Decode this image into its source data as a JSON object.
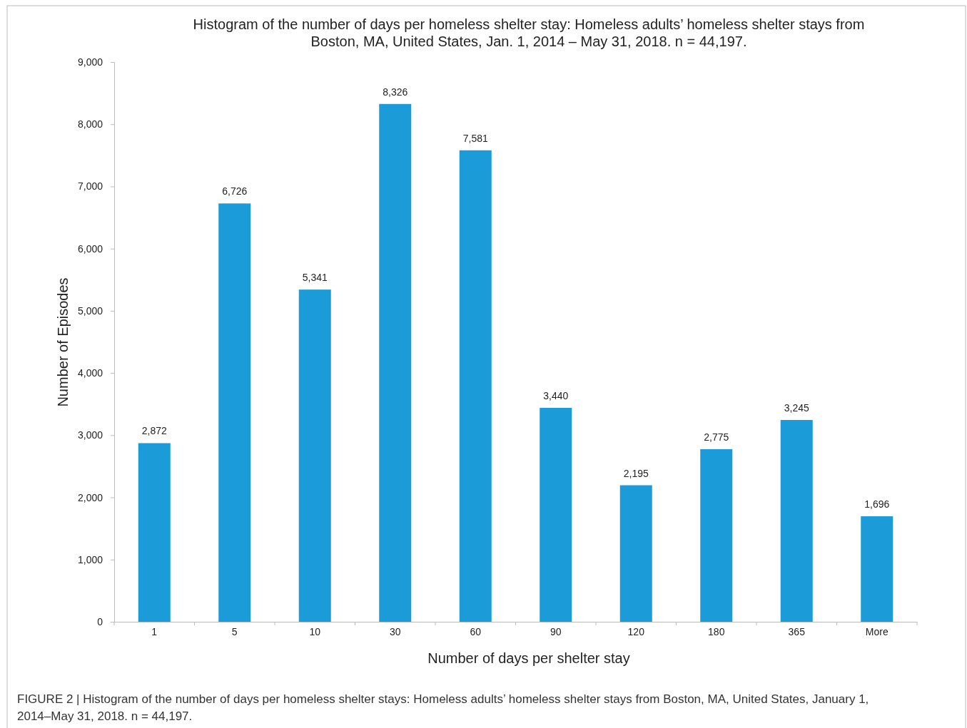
{
  "chart_data": {
    "type": "bar",
    "title": "Histogram of the number of days per homeless shelter stay: Homeless adults’ homeless shelter stays from Boston, MA, United States, Jan. 1, 2014 – May 31, 2018. n = 44,197.",
    "xlabel": "Number of days per shelter stay",
    "ylabel": "Number of Episodes",
    "categories": [
      "1",
      "5",
      "10",
      "30",
      "60",
      "90",
      "120",
      "180",
      "365",
      "More"
    ],
    "values": [
      2872,
      6726,
      5341,
      8326,
      7581,
      3440,
      2195,
      2775,
      3245,
      1696
    ],
    "color": "#1b9cd8",
    "ylim": [
      0,
      9000
    ],
    "yticks": [
      {
        "value": 0,
        "label": "0"
      },
      {
        "value": 1000,
        "label": "1,000"
      },
      {
        "value": 2000,
        "label": "2,000"
      },
      {
        "value": 3000,
        "label": "3,000"
      },
      {
        "value": 4000,
        "label": "4,000"
      },
      {
        "value": 5000,
        "label": "5,000"
      },
      {
        "value": 6000,
        "label": "6,000"
      },
      {
        "value": 7000,
        "label": "7,000"
      },
      {
        "value": 8000,
        "label": "8,000"
      },
      {
        "value": 9000,
        "label": "9,000"
      }
    ],
    "value_labels": [
      "2,872",
      "6,726",
      "5,341",
      "8,326",
      "7,581",
      "3,440",
      "2,195",
      "2,775",
      "3,245",
      "1,696"
    ],
    "grid": false,
    "annotations": [
      "FIGURE 2 | Histogram of the number of days per homeless shelter stays: Homeless adults’ homeless shelter stays from Boston, MA, United States, January 1, 2014–May 31, 2018. n = 44,197."
    ]
  }
}
